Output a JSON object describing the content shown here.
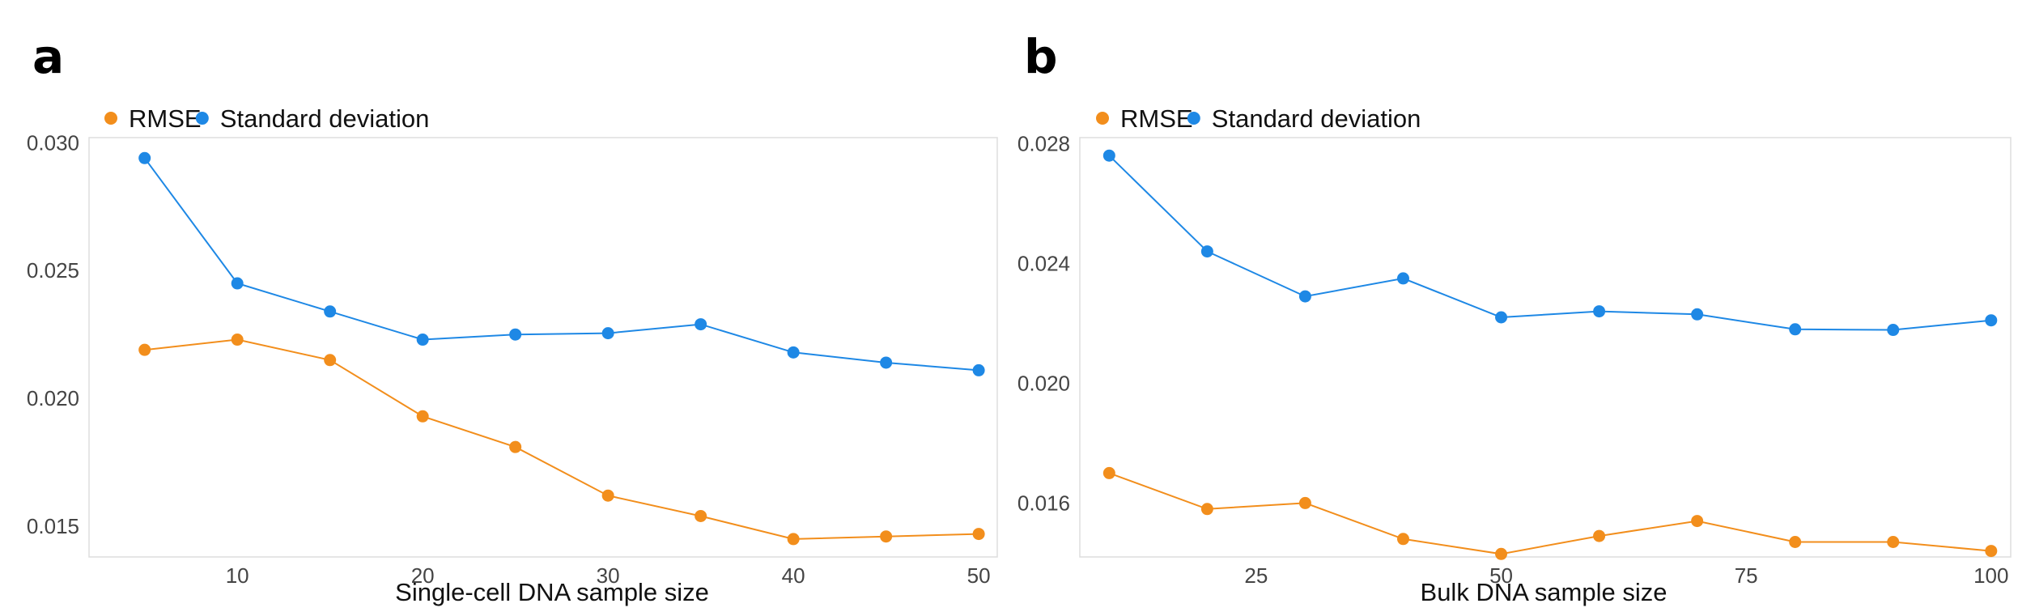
{
  "chart_data": [
    {
      "panel": "a",
      "type": "line",
      "xlabel": "Single-cell DNA sample size",
      "ylabel": "",
      "x": [
        5,
        10,
        15,
        20,
        25,
        30,
        35,
        40,
        45,
        50
      ],
      "xlim": [
        2,
        51
      ],
      "ylim": [
        0.0138,
        0.0302
      ],
      "xticks": [
        10,
        20,
        30,
        40,
        50
      ],
      "yticks": [
        0.015,
        0.02,
        0.025,
        0.03
      ],
      "ytick_labels": [
        "0.015",
        "0.020",
        "0.025",
        "0.030"
      ],
      "grid": false,
      "legend_position": "top-left",
      "series": [
        {
          "name": "RMSE",
          "color": "#F28E1C",
          "values": [
            0.0219,
            0.0223,
            0.0215,
            0.0193,
            0.0181,
            0.0162,
            0.0154,
            0.0145,
            0.0146,
            0.0147
          ]
        },
        {
          "name": "Standard deviation",
          "color": "#1E88E5",
          "values": [
            0.0294,
            0.0245,
            0.0234,
            0.0223,
            0.0225,
            0.02255,
            0.0229,
            0.0218,
            0.0214,
            0.0211
          ]
        }
      ]
    },
    {
      "panel": "b",
      "type": "line",
      "xlabel": "Bulk DNA sample size",
      "ylabel": "",
      "x": [
        10,
        20,
        30,
        40,
        50,
        60,
        70,
        80,
        90,
        100
      ],
      "xlim": [
        7,
        102
      ],
      "ylim": [
        0.0142,
        0.0282
      ],
      "xticks": [
        25,
        50,
        75,
        100
      ],
      "yticks": [
        0.016,
        0.02,
        0.024,
        0.028
      ],
      "ytick_labels": [
        "0.016",
        "0.020",
        "0.024",
        "0.028"
      ],
      "grid": false,
      "legend_position": "top-left",
      "series": [
        {
          "name": "RMSE",
          "color": "#F28E1C",
          "values": [
            0.017,
            0.0158,
            0.016,
            0.0148,
            0.0143,
            0.0149,
            0.0154,
            0.0147,
            0.0147,
            0.0144
          ]
        },
        {
          "name": "Standard deviation",
          "color": "#1E88E5",
          "values": [
            0.0276,
            0.0244,
            0.0229,
            0.0235,
            0.0222,
            0.0224,
            0.0223,
            0.0218,
            0.02178,
            0.0221
          ]
        }
      ]
    }
  ]
}
